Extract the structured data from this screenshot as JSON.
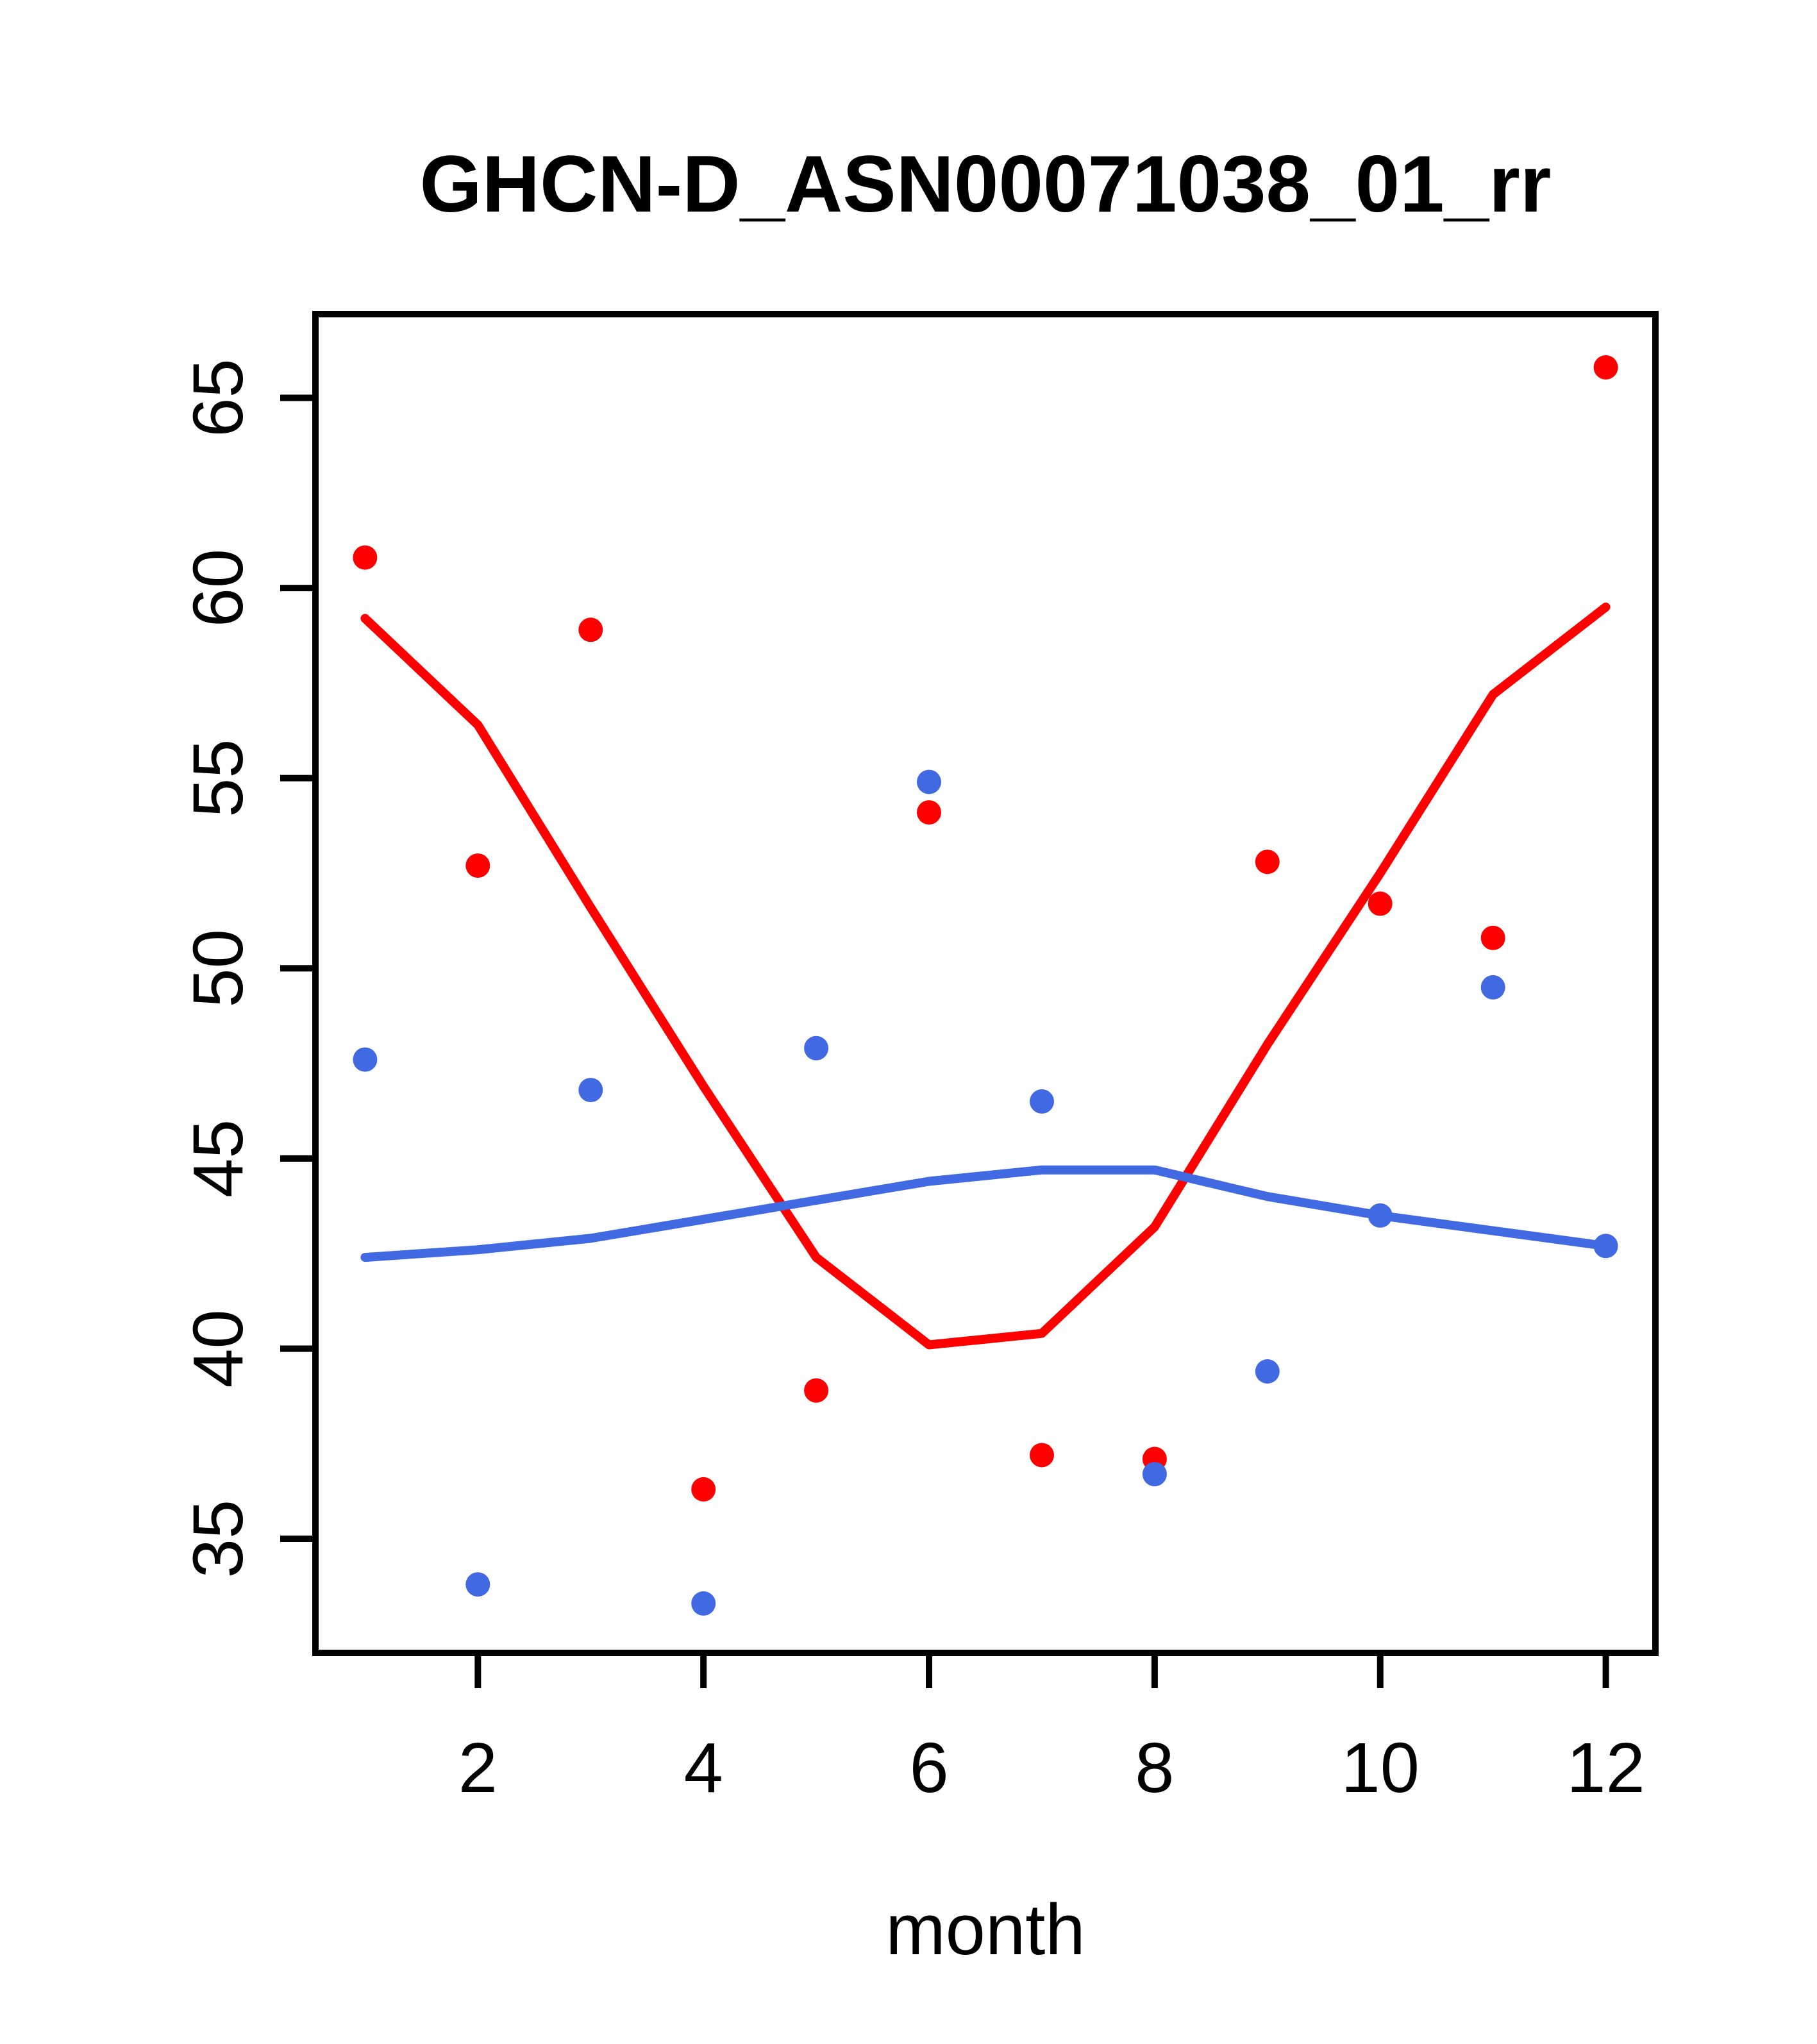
{
  "title": "GHCN-D_ASN00071038_01_rr",
  "xlabel": "month",
  "colors": {
    "red": "#ff0000",
    "blue": "#4169e1",
    "axis": "#000000",
    "background": "#ffffff"
  },
  "chart_data": {
    "type": "scatter",
    "title": "GHCN-D_ASN00071038_01_rr",
    "xlabel": "month",
    "ylabel": "",
    "grid": false,
    "legend_position": "none",
    "x_ticks": [
      2,
      4,
      6,
      8,
      10,
      12
    ],
    "y_ticks": [
      35,
      40,
      45,
      50,
      55,
      60,
      65
    ],
    "xlim": [
      0.56,
      12.44
    ],
    "ylim": [
      32.0,
      67.2
    ],
    "x": [
      1,
      2,
      3,
      4,
      5,
      6,
      7,
      8,
      9,
      10,
      11,
      12
    ],
    "series": [
      {
        "name": "red-points",
        "kind": "points",
        "color": "#ff0000",
        "values": [
          60.8,
          52.7,
          58.9,
          36.3,
          38.9,
          54.1,
          37.2,
          37.1,
          52.8,
          51.7,
          50.8,
          65.8
        ]
      },
      {
        "name": "blue-points",
        "kind": "points",
        "color": "#4169e1",
        "values": [
          47.6,
          33.8,
          46.8,
          33.3,
          47.9,
          54.9,
          46.5,
          36.7,
          39.4,
          43.5,
          49.5,
          42.7
        ]
      },
      {
        "name": "red-smooth-line",
        "kind": "line",
        "color": "#ff0000",
        "values": [
          59.2,
          56.4,
          51.6,
          46.9,
          42.4,
          40.1,
          40.4,
          43.2,
          48.0,
          52.5,
          57.2,
          59.5
        ]
      },
      {
        "name": "blue-smooth-line",
        "kind": "line",
        "color": "#4169e1",
        "values": [
          42.4,
          42.6,
          42.9,
          43.4,
          43.9,
          44.4,
          44.7,
          44.7,
          44.0,
          43.5,
          43.1,
          42.7
        ]
      }
    ]
  }
}
